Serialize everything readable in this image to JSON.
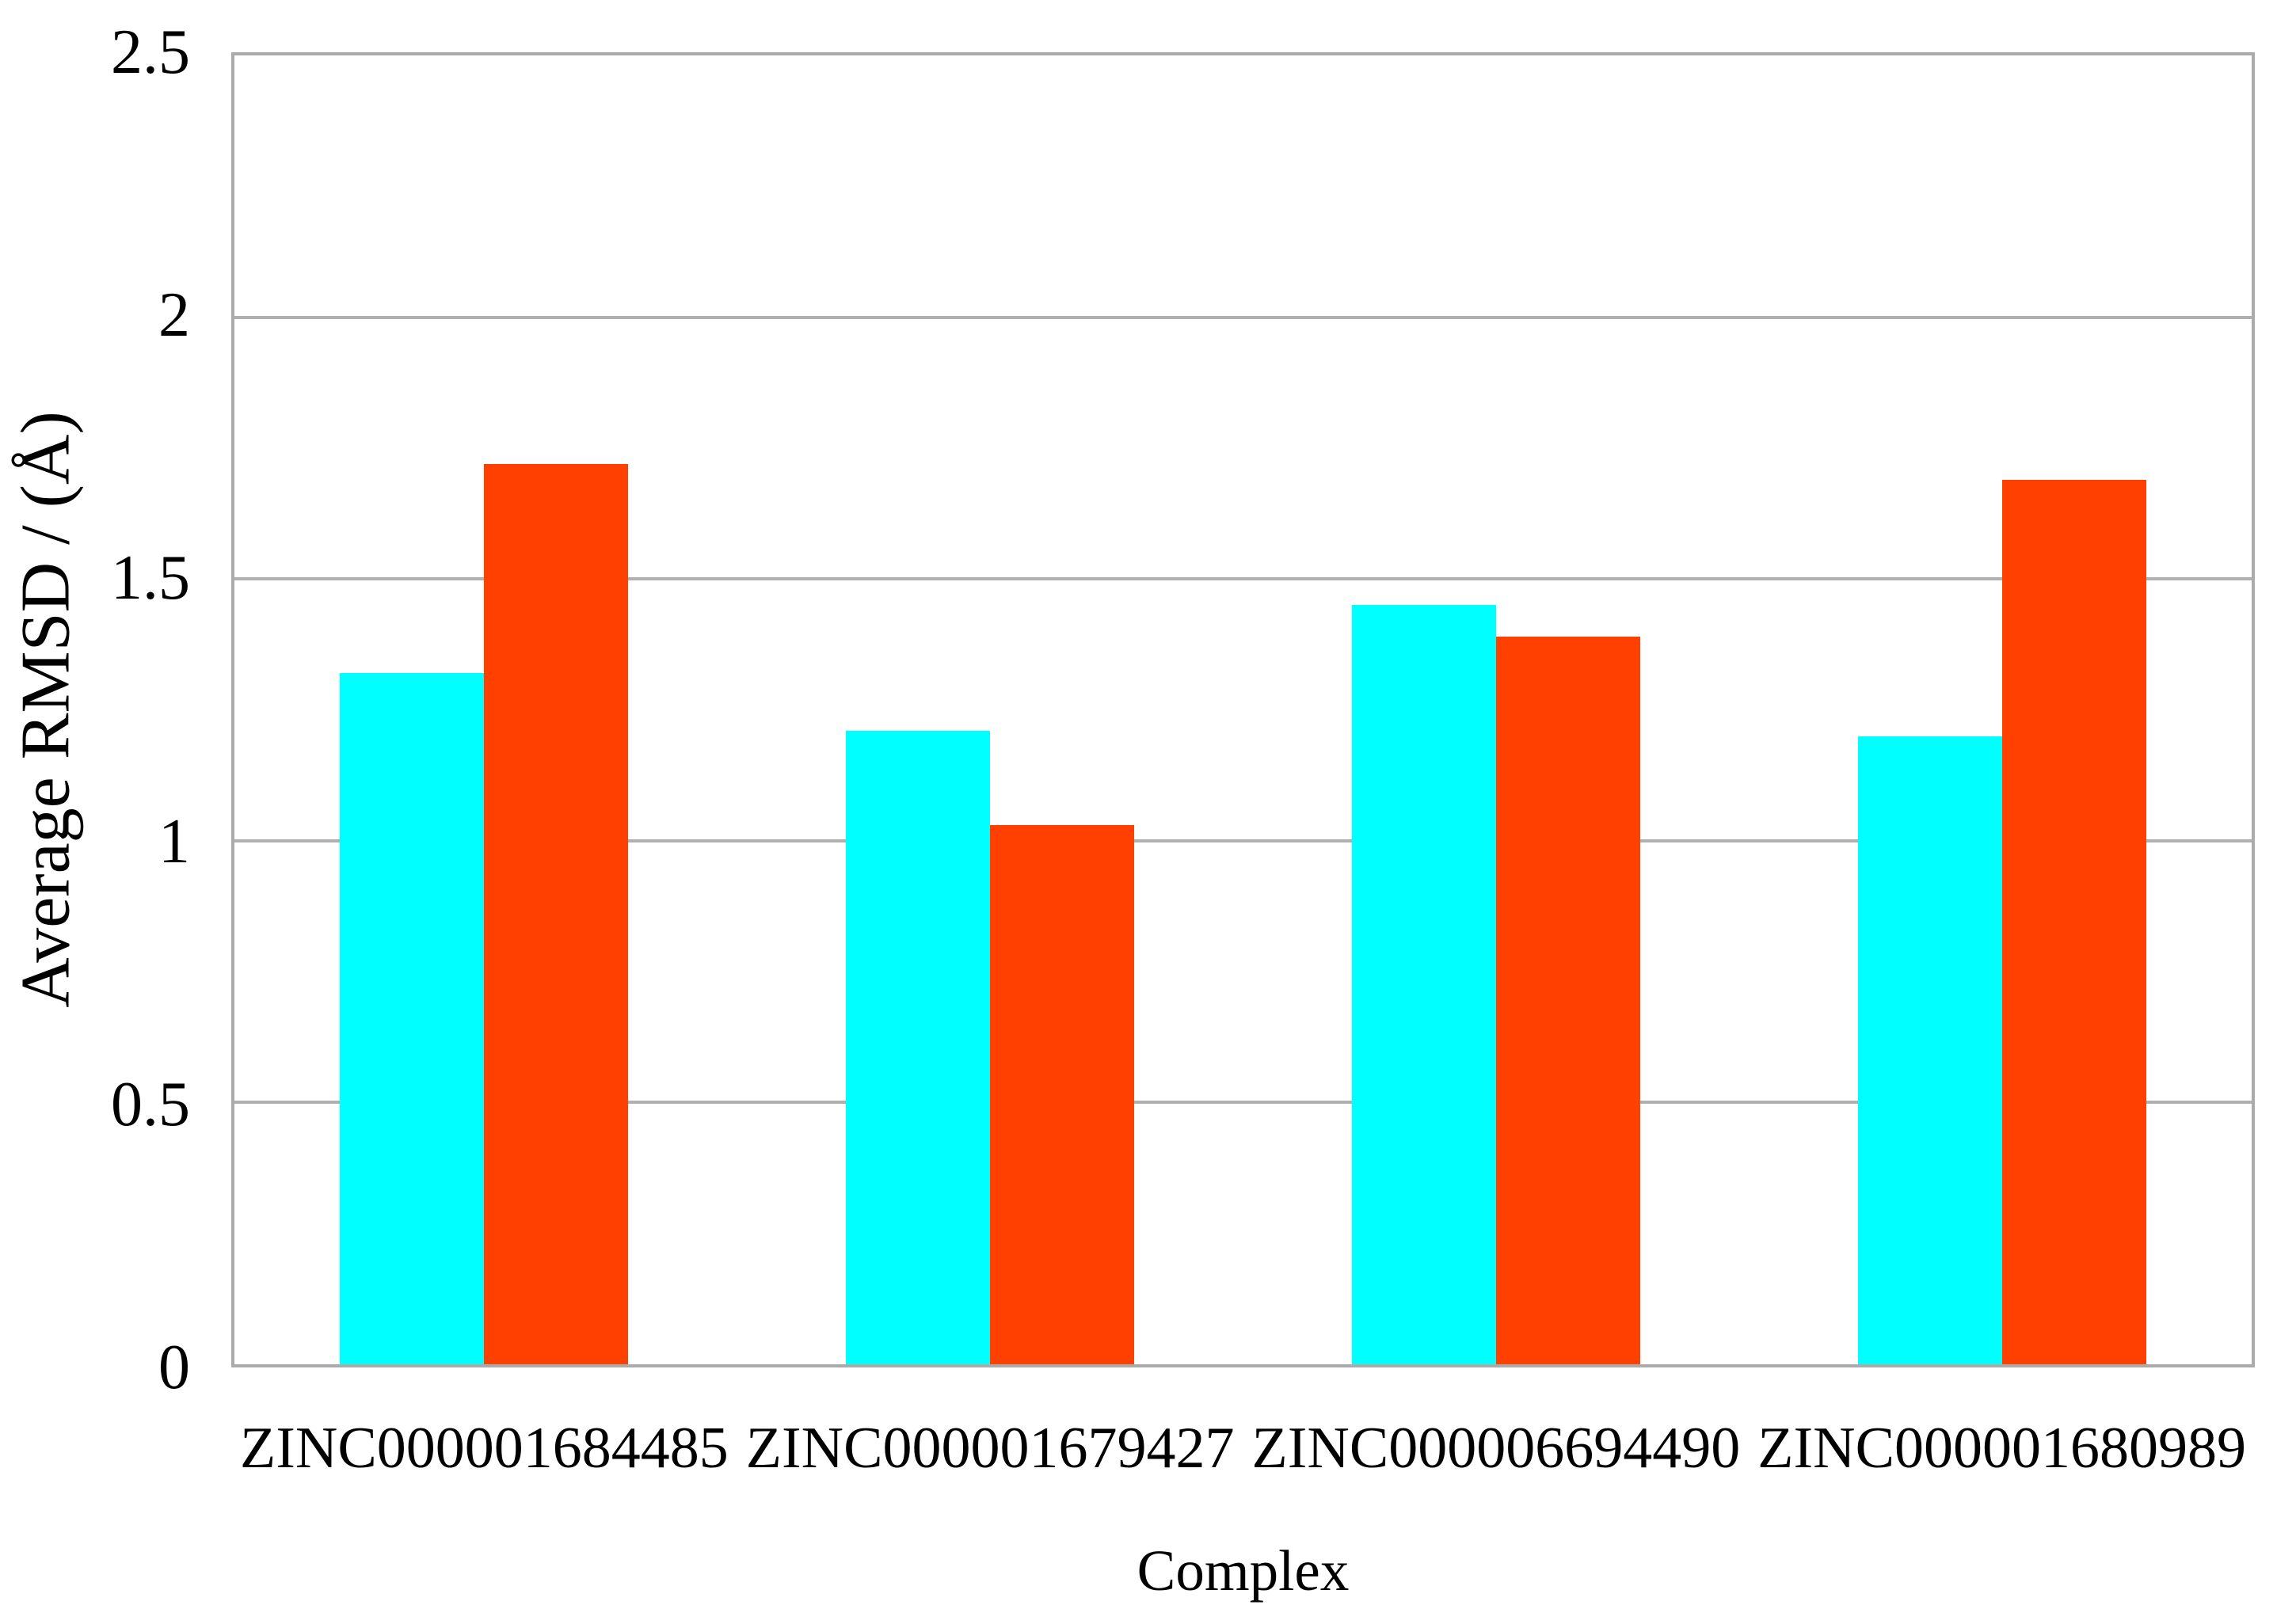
{
  "chart_data": {
    "type": "bar",
    "title": "",
    "categories": [
      "ZINC000001684485",
      "ZINC000001679427",
      "ZINC000006694490",
      "ZINC000001680989"
    ],
    "series": [
      {
        "name": "cyan",
        "color": "#00ffff",
        "values": [
          1.32,
          1.21,
          1.45,
          1.2
        ]
      },
      {
        "name": "red-orange",
        "color": "#ff4000",
        "values": [
          1.72,
          1.03,
          1.39,
          1.69
        ]
      }
    ],
    "xlabel": "Complex",
    "ylabel": "Average RMSD / (Å)",
    "ylim": [
      0,
      2.5
    ],
    "ytick_step": 0.5,
    "yticks": [
      "2.5",
      "2",
      "1.5",
      "1",
      "0.5",
      "0"
    ],
    "grid": true,
    "legend": "none"
  },
  "colors": {
    "background": "#ffffff",
    "gridline": "#b0b0b0",
    "axis": "#ababab",
    "text": "#000000"
  }
}
